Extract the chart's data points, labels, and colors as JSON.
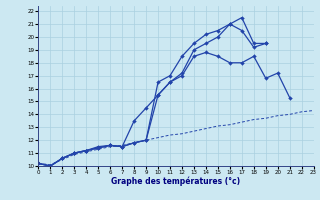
{
  "background_color": "#cce8f2",
  "grid_color": "#aad0e0",
  "line_color": "#2244aa",
  "xlabel": "Graphe des températures (°c)",
  "xlim": [
    0,
    23
  ],
  "ylim": [
    10,
    22.4
  ],
  "xticks": [
    0,
    1,
    2,
    3,
    4,
    5,
    6,
    7,
    8,
    9,
    10,
    11,
    12,
    13,
    14,
    15,
    16,
    17,
    18,
    19,
    20,
    21,
    22,
    23
  ],
  "yticks": [
    10,
    11,
    12,
    13,
    14,
    15,
    16,
    17,
    18,
    19,
    20,
    21,
    22
  ],
  "line1": {
    "x": [
      0,
      1,
      2,
      3,
      4,
      5,
      6,
      7,
      8,
      9,
      10,
      11,
      12,
      13,
      14,
      15,
      16,
      17,
      18,
      19
    ],
    "y": [
      10.2,
      10.0,
      10.6,
      11.0,
      11.2,
      11.5,
      11.6,
      11.5,
      11.8,
      12.0,
      16.5,
      17.0,
      18.5,
      19.5,
      20.2,
      20.5,
      21.0,
      21.5,
      19.5,
      19.5
    ]
  },
  "line2": {
    "x": [
      0,
      1,
      2,
      3,
      4,
      5,
      6,
      7,
      8,
      9,
      10,
      11,
      12,
      13,
      14,
      15,
      16,
      17,
      18,
      19
    ],
    "y": [
      10.2,
      10.0,
      10.6,
      11.0,
      11.2,
      11.4,
      11.6,
      11.5,
      11.8,
      12.0,
      15.5,
      16.5,
      17.2,
      19.0,
      19.5,
      20.0,
      21.0,
      20.5,
      19.2,
      19.5
    ]
  },
  "line3": {
    "x": [
      0,
      1,
      2,
      3,
      4,
      5,
      6,
      7,
      8,
      9,
      10,
      11,
      12,
      13,
      14,
      15,
      16,
      17,
      18,
      19,
      20,
      21,
      22,
      23
    ],
    "y": [
      10.2,
      10.0,
      10.6,
      11.0,
      11.2,
      11.4,
      11.6,
      11.5,
      13.5,
      14.5,
      15.5,
      16.5,
      17.0,
      18.5,
      18.8,
      18.5,
      18.0,
      18.0,
      18.5,
      16.8,
      17.2,
      15.3,
      null,
      null
    ]
  },
  "line4": {
    "x": [
      0,
      1,
      2,
      3,
      4,
      5,
      6,
      7,
      8,
      9,
      10,
      11,
      12,
      13,
      14,
      15,
      16,
      17,
      18,
      19,
      20,
      21,
      22,
      23
    ],
    "y": [
      10.2,
      10.1,
      10.5,
      10.9,
      11.1,
      11.3,
      11.5,
      11.6,
      11.8,
      12.0,
      12.2,
      12.4,
      12.5,
      12.7,
      12.9,
      13.1,
      13.2,
      13.4,
      13.6,
      13.7,
      13.9,
      14.0,
      14.2,
      14.3
    ]
  }
}
